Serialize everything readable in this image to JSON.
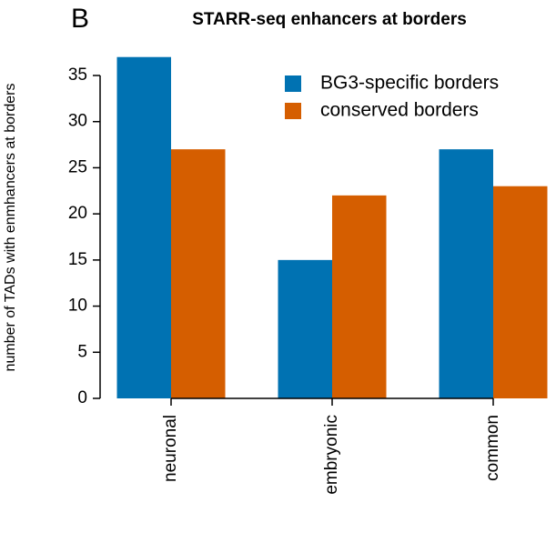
{
  "chart_data": {
    "type": "bar",
    "panel_label": "B",
    "title": "STARR-seq enhancers at borders",
    "y_label": "number of TADs with enmhancers at borders",
    "categories": [
      "neuronal",
      "embryonic",
      "common"
    ],
    "series": [
      {
        "name": "BG3-specific borders",
        "color": "#0072B2",
        "values": [
          37,
          15,
          27
        ]
      },
      {
        "name": "conserved borders",
        "color": "#D55E00",
        "values": [
          27,
          22,
          23
        ]
      }
    ],
    "ylim": [
      0,
      35
    ],
    "yticks": [
      0,
      5,
      10,
      15,
      20,
      25,
      30,
      35
    ],
    "grid": false,
    "legend": "top-right"
  }
}
